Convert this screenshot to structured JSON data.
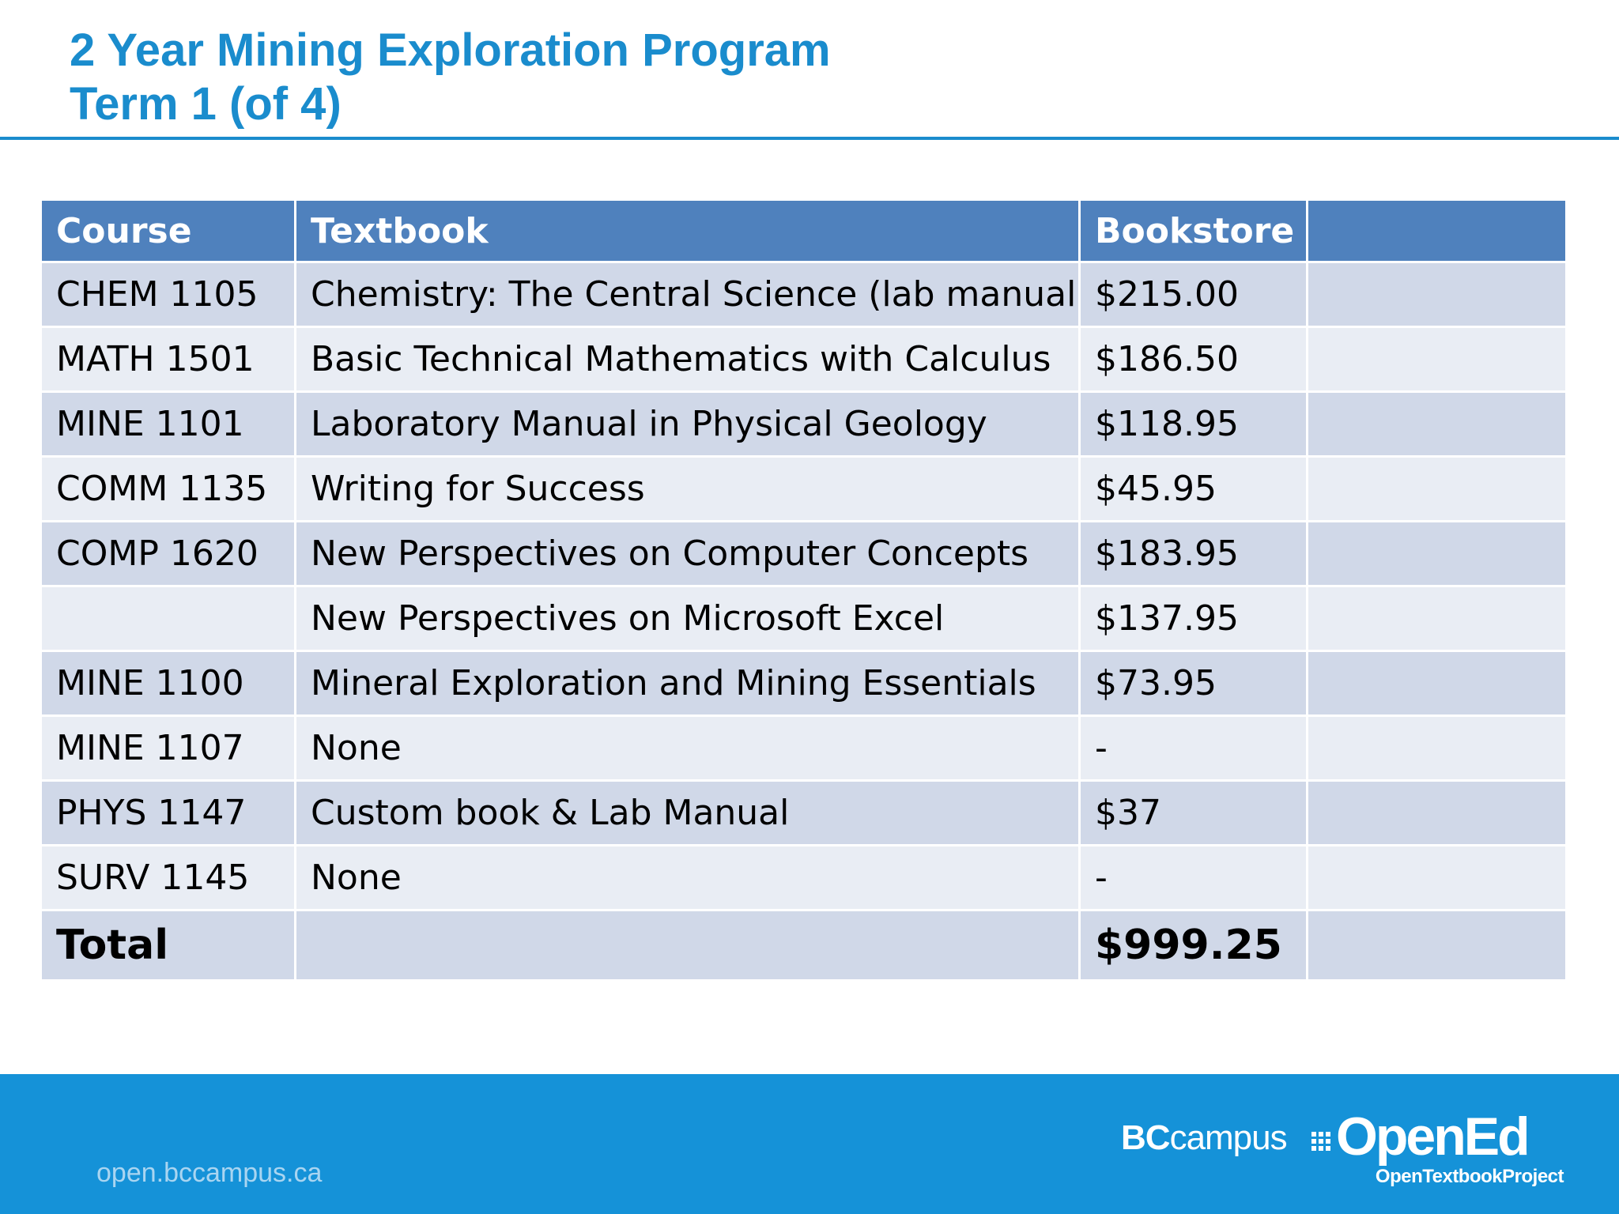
{
  "title": {
    "line1": "2 Year Mining Exploration Program",
    "line2": "Term 1 (of 4)"
  },
  "table": {
    "headers": [
      "Course",
      "Textbook",
      "Bookstore",
      ""
    ],
    "rows": [
      [
        "CHEM 1105",
        "Chemistry: The Central Science (lab manual)",
        "$215.00",
        ""
      ],
      [
        "MATH 1501",
        "Basic Technical Mathematics with Calculus",
        "$186.50",
        ""
      ],
      [
        "MINE 1101",
        "Laboratory Manual in Physical Geology",
        "$118.95",
        ""
      ],
      [
        "COMM 1135",
        "Writing for Success",
        "$45.95",
        ""
      ],
      [
        "COMP 1620",
        "New Perspectives on Computer Concepts",
        "$183.95",
        ""
      ],
      [
        "",
        "New Perspectives on Microsoft Excel",
        "$137.95",
        ""
      ],
      [
        "MINE 1100",
        "Mineral Exploration and Mining Essentials",
        "$73.95",
        ""
      ],
      [
        "MINE 1107",
        "None",
        "-",
        ""
      ],
      [
        "PHYS 1147",
        "Custom book & Lab Manual",
        "$37",
        ""
      ],
      [
        "SURV 1145",
        "None",
        "-",
        ""
      ]
    ],
    "total": [
      "Total",
      "",
      "$999.25",
      ""
    ]
  },
  "footer": {
    "url": "open.bccampus.ca",
    "logo_bc": "BC",
    "logo_campus": "campus",
    "logo_opened": "OpenEd",
    "logo_sub": "OpenTextbookProject"
  },
  "colors": {
    "title": "#1a8ccd",
    "header_bg": "#4f81bd",
    "row_dark": "#d0d8e8",
    "row_light": "#e9edf4",
    "footer_bg": "#1592d8"
  }
}
